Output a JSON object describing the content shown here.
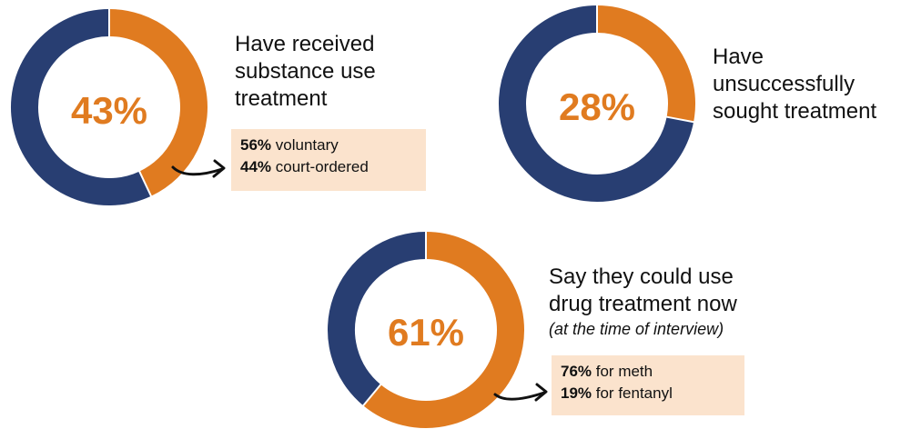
{
  "colors": {
    "primary": "#e07b20",
    "remainder": "#283e72",
    "box_fill": "#fbe3cd"
  },
  "chart_data": [
    {
      "type": "pie",
      "variant": "donut",
      "title": "",
      "center_label": "43%",
      "slices": [
        {
          "label": "",
          "value": 43
        },
        {
          "label": "",
          "value": 57
        }
      ],
      "caption_lines": [
        "Have received",
        "substance use",
        "treatment"
      ],
      "breakdown": [
        {
          "pct": "56%",
          "text": " voluntary"
        },
        {
          "pct": "44%",
          "text": " court-ordered"
        }
      ]
    },
    {
      "type": "pie",
      "variant": "donut",
      "title": "",
      "center_label": "28%",
      "slices": [
        {
          "label": "",
          "value": 28
        },
        {
          "label": "",
          "value": 72
        }
      ],
      "caption_lines": [
        "Have",
        "unsuccessfully",
        "sought treatment"
      ]
    },
    {
      "type": "pie",
      "variant": "donut",
      "title": "",
      "center_label": "61%",
      "slices": [
        {
          "label": "",
          "value": 61
        },
        {
          "label": "",
          "value": 39
        }
      ],
      "caption_lines": [
        "Say they could use",
        "drug treatment now"
      ],
      "caption_note": "(at the time of interview)",
      "breakdown": [
        {
          "pct": "76%",
          "text": " for meth"
        },
        {
          "pct": "19%",
          "text": " for fentanyl"
        }
      ]
    }
  ]
}
